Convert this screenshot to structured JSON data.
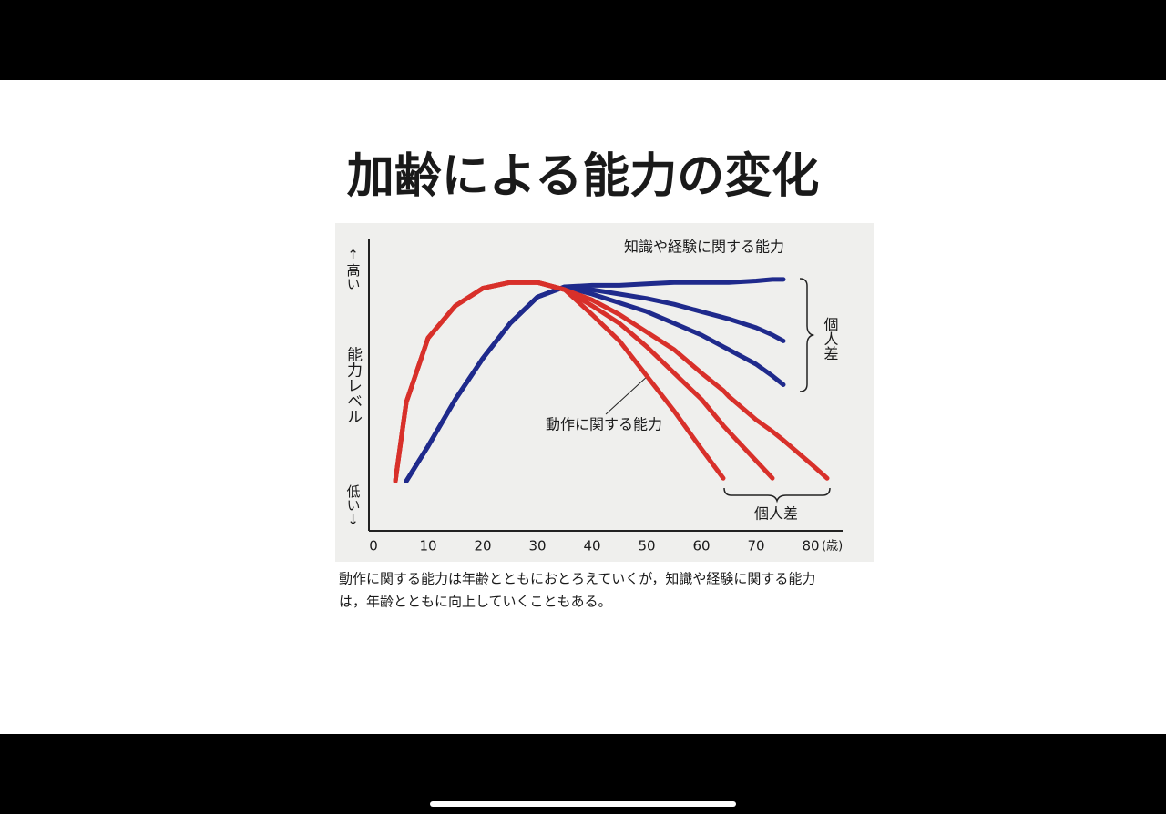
{
  "title": "加齢による能力の変化",
  "caption_lines": [
    "動作に関する能力は年齢とともにおとろえていくが，知識や経験に関する能力",
    "は，年齢とともに向上していくこともある。"
  ],
  "chart_data": {
    "type": "line",
    "x": [
      4,
      6,
      10,
      15,
      20,
      25,
      30,
      35,
      40,
      45,
      50,
      55,
      60,
      64,
      65,
      70,
      73,
      75,
      80,
      83
    ],
    "xlim": [
      0,
      86
    ],
    "xticks": [
      0,
      10,
      20,
      30,
      40,
      50,
      60,
      70,
      80
    ],
    "x_unit": "(歳)",
    "ylim": [
      0,
      100
    ],
    "y_label_top": "↑高い",
    "y_label": "能力レベル",
    "y_label_bottom": "低い↓",
    "series": [
      {
        "color": "#1f2a8c",
        "values": [
          null,
          17,
          29,
          45,
          59,
          71,
          80,
          83.5,
          84,
          84,
          84.5,
          85,
          85,
          85,
          85,
          85.5,
          86,
          86,
          null,
          null
        ]
      },
      {
        "color": "#1f2a8c",
        "values": [
          null,
          17,
          29,
          45,
          59,
          71,
          80,
          83.5,
          82.5,
          81,
          79.5,
          77.5,
          75,
          73,
          72.5,
          69.5,
          67,
          65,
          null,
          null
        ]
      },
      {
        "color": "#1f2a8c",
        "values": [
          null,
          17,
          29,
          45,
          59,
          71,
          80,
          83.5,
          81,
          78,
          75,
          71,
          67,
          63,
          62,
          57,
          53,
          50,
          null,
          null
        ]
      },
      {
        "color": "#d8302a",
        "values": [
          17,
          44,
          66,
          77,
          83,
          85,
          85,
          82.5,
          74,
          65,
          53,
          41,
          28,
          18,
          null,
          null,
          null,
          null,
          null,
          null
        ]
      },
      {
        "color": "#d8302a",
        "values": [
          17,
          44,
          66,
          77,
          83,
          85,
          85,
          82.5,
          77,
          71,
          63,
          54,
          45,
          36,
          34,
          24,
          18,
          null,
          null,
          null
        ]
      },
      {
        "color": "#d8302a",
        "values": [
          17,
          44,
          66,
          77,
          83,
          85,
          85,
          82.5,
          79,
          74,
          68,
          62,
          54,
          48,
          46,
          38,
          34,
          31,
          23,
          18
        ]
      }
    ],
    "annotations": [
      {
        "text": "知識や経験に関する能力"
      },
      {
        "text": "個人差"
      },
      {
        "text": "動作に関する能力"
      },
      {
        "text": "個人差"
      }
    ]
  }
}
